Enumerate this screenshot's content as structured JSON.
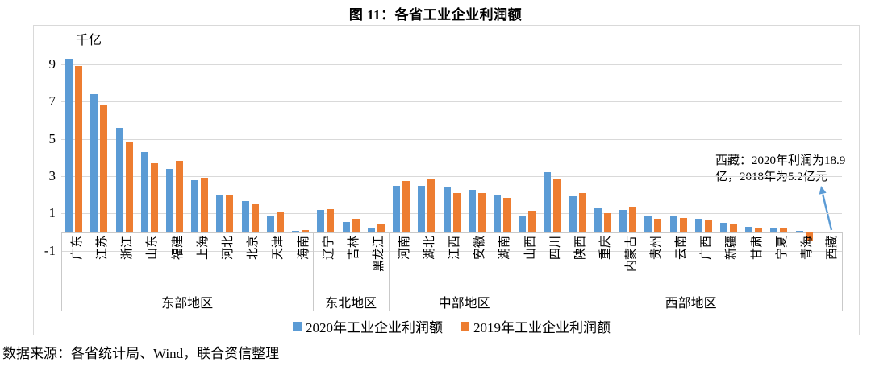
{
  "title": "图 11：各省工业企业利润额",
  "source_note": "数据来源：各省统计局、Wind，联合资信整理",
  "annotation": {
    "line1": "西藏：2020年利润为18.9",
    "line2": "亿，2018年为5.2亿元"
  },
  "chart_data": {
    "type": "bar",
    "title": "图 11：各省工业企业利润额",
    "unit_label": "千亿",
    "ylabel": "千亿",
    "ylim": [
      -1,
      10
    ],
    "y_ticks": [
      9,
      7,
      5,
      3,
      1,
      -1
    ],
    "grid": true,
    "legend_position": "bottom",
    "series": [
      {
        "name": "2020年工业企业利润额",
        "color": "#5B9BD5"
      },
      {
        "name": "2019年工业企业利润额",
        "color": "#ED7D31"
      }
    ],
    "regions": [
      {
        "label": "东部地区",
        "categories": [
          "广东",
          "江苏",
          "浙江",
          "山东",
          "福建",
          "上海",
          "河北",
          "北京",
          "天津",
          "海南"
        ],
        "values_2020": [
          9.3,
          7.4,
          5.6,
          4.3,
          3.4,
          2.8,
          2.0,
          1.65,
          0.85,
          0.08
        ],
        "values_2019": [
          8.9,
          6.8,
          4.8,
          3.7,
          3.8,
          2.9,
          1.95,
          1.55,
          1.1,
          0.12
        ]
      },
      {
        "label": "东北地区",
        "categories": [
          "辽宁",
          "吉林",
          "黑龙江"
        ],
        "values_2020": [
          1.17,
          0.55,
          0.25
        ],
        "values_2019": [
          1.22,
          0.7,
          0.4
        ]
      },
      {
        "label": "中部地区",
        "categories": [
          "河南",
          "湖北",
          "江西",
          "安徽",
          "湖南",
          "山西"
        ],
        "values_2020": [
          2.5,
          2.5,
          2.4,
          2.25,
          2.0,
          0.9
        ],
        "values_2019": [
          2.75,
          2.85,
          2.1,
          2.1,
          1.85,
          1.15
        ]
      },
      {
        "label": "西部地区",
        "categories": [
          "四川",
          "陕西",
          "重庆",
          "内蒙古",
          "贵州",
          "云南",
          "广西",
          "新疆",
          "甘肃",
          "宁夏",
          "青海",
          "西藏"
        ],
        "values_2020": [
          3.2,
          1.9,
          1.27,
          1.2,
          0.9,
          0.9,
          0.72,
          0.5,
          0.28,
          0.2,
          0.08,
          0.02
        ],
        "values_2019": [
          2.87,
          2.1,
          1.03,
          1.35,
          0.72,
          0.75,
          0.64,
          0.47,
          0.22,
          0.24,
          -0.5,
          0.01
        ]
      }
    ],
    "annotation_text": "西藏：2020年利润为18.9亿，2018年为5.2亿元",
    "colors": {
      "bar_2020": "#5B9BD5",
      "bar_2019": "#ED7D31",
      "gridline": "#d9d9d9",
      "arrow": "#5B9BD5"
    }
  }
}
